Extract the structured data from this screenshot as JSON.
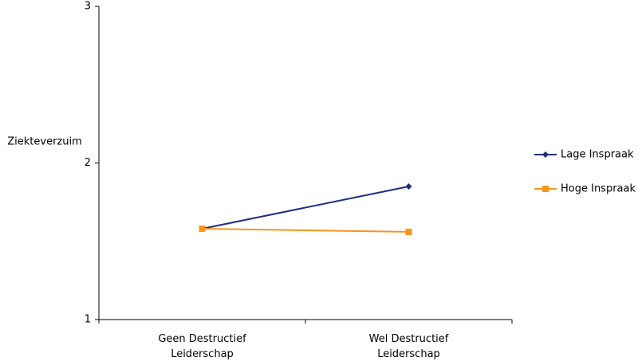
{
  "chart_data": {
    "type": "line",
    "y_label": "Ziekteverzuim",
    "categories": [
      "Geen Destructief\nLeiderschap",
      "Wel Destructief\nLeiderschap"
    ],
    "series": [
      {
        "name": "Lage Inspraak",
        "color": "#1f2f80",
        "marker": "diamond",
        "values": [
          1.58,
          1.85
        ]
      },
      {
        "name": "Hoge Inspraak",
        "color": "#f7941d",
        "marker": "square",
        "values": [
          1.58,
          1.56
        ]
      }
    ],
    "ylim": [
      1,
      3
    ],
    "yticks": [
      1,
      2,
      3
    ],
    "legend": "right"
  }
}
